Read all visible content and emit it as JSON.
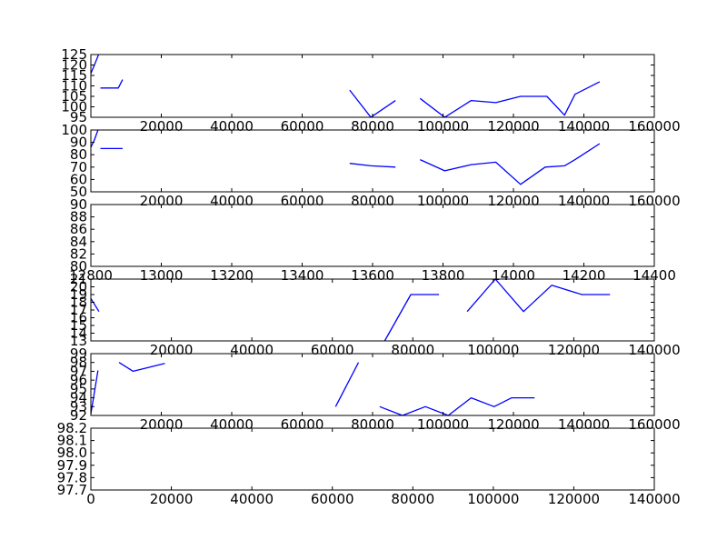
{
  "chart_data": [
    {
      "type": "line",
      "xlim": [
        0,
        160000
      ],
      "ylim": [
        95,
        125
      ],
      "xticks": [
        0,
        20000,
        40000,
        60000,
        80000,
        100000,
        120000,
        140000,
        160000
      ],
      "xtick_labels": [
        "",
        "20000",
        "40000",
        "60000",
        "80000",
        "100000",
        "120000",
        "140000",
        "160000"
      ],
      "yticks": [
        95,
        100,
        105,
        110,
        115,
        120,
        125
      ],
      "ytick_labels": [
        "95",
        "100",
        "105",
        "110",
        "115",
        "120",
        "125"
      ],
      "color": "#0000ff",
      "segments": [
        [
          [
            0,
            116
          ],
          [
            1000,
            120
          ],
          [
            2200,
            125
          ]
        ],
        [
          [
            2700,
            109
          ],
          [
            7800,
            109
          ],
          [
            9000,
            113
          ]
        ],
        [
          [
            73500,
            108
          ],
          [
            79500,
            95
          ],
          [
            86500,
            103
          ]
        ],
        [
          [
            93500,
            104
          ],
          [
            100500,
            95
          ],
          [
            108000,
            103
          ],
          [
            115000,
            102
          ],
          [
            122000,
            105
          ],
          [
            129500,
            105
          ],
          [
            134500,
            96
          ],
          [
            137500,
            106
          ],
          [
            144500,
            112
          ]
        ]
      ]
    },
    {
      "type": "line",
      "xlim": [
        0,
        160000
      ],
      "ylim": [
        50,
        100
      ],
      "xticks": [
        0,
        20000,
        40000,
        60000,
        80000,
        100000,
        120000,
        140000,
        160000
      ],
      "xtick_labels": [
        "",
        "20000",
        "40000",
        "60000",
        "80000",
        "100000",
        "120000",
        "140000",
        "160000"
      ],
      "yticks": [
        50,
        60,
        70,
        80,
        90,
        100
      ],
      "ytick_labels": [
        "50",
        "60",
        "70",
        "80",
        "90",
        "100"
      ],
      "color": "#0000ff",
      "segments": [
        [
          [
            0,
            86
          ],
          [
            1000,
            92
          ],
          [
            2000,
            100
          ]
        ],
        [
          [
            2700,
            85
          ],
          [
            9000,
            85
          ]
        ],
        [
          [
            73500,
            73
          ],
          [
            79500,
            71
          ],
          [
            86500,
            70
          ]
        ],
        [
          [
            93500,
            76
          ],
          [
            100500,
            67
          ],
          [
            108000,
            72
          ],
          [
            115000,
            74
          ],
          [
            122000,
            56
          ],
          [
            129000,
            70
          ],
          [
            134500,
            71
          ],
          [
            137500,
            76
          ],
          [
            144500,
            89
          ]
        ]
      ]
    },
    {
      "type": "line",
      "xlim": [
        12800,
        14400
      ],
      "ylim": [
        80,
        90
      ],
      "xticks": [
        12800,
        13000,
        13200,
        13400,
        13600,
        13800,
        14000,
        14200,
        14400
      ],
      "xtick_labels": [
        "12800",
        "13000",
        "13200",
        "13400",
        "13600",
        "13800",
        "14000",
        "14200",
        "14400"
      ],
      "yticks": [
        80,
        82,
        84,
        86,
        88,
        90
      ],
      "ytick_labels": [
        "80",
        "82",
        "84",
        "86",
        "88",
        "90"
      ],
      "color": "#0000ff",
      "segments": []
    },
    {
      "type": "line",
      "xlim": [
        0,
        140000
      ],
      "ylim": [
        13,
        21
      ],
      "xticks": [
        0,
        20000,
        40000,
        60000,
        80000,
        100000,
        120000,
        140000
      ],
      "xtick_labels": [
        "",
        "20000",
        "40000",
        "60000",
        "80000",
        "100000",
        "120000",
        "140000"
      ],
      "yticks": [
        13,
        14,
        15,
        16,
        17,
        18,
        19,
        20,
        21
      ],
      "ytick_labels": [
        "13",
        "14",
        "15",
        "16",
        "17",
        "18",
        "19",
        "20",
        "21"
      ],
      "color": "#0000ff",
      "segments": [
        [
          [
            0,
            18.5
          ],
          [
            2000,
            16.8
          ]
        ],
        [
          [
            73000,
            13
          ],
          [
            79500,
            19
          ],
          [
            86500,
            19
          ]
        ],
        [
          [
            93500,
            16.8
          ],
          [
            100500,
            21
          ],
          [
            107500,
            16.8
          ],
          [
            114500,
            20.2
          ],
          [
            122000,
            19
          ],
          [
            129000,
            19
          ]
        ]
      ]
    },
    {
      "type": "line",
      "xlim": [
        0,
        160000
      ],
      "ylim": [
        92,
        99
      ],
      "xticks": [
        0,
        20000,
        40000,
        60000,
        80000,
        100000,
        120000,
        140000,
        160000
      ],
      "xtick_labels": [
        "",
        "20000",
        "40000",
        "60000",
        "80000",
        "100000",
        "120000",
        "140000",
        "160000"
      ],
      "yticks": [
        92,
        93,
        94,
        95,
        96,
        97,
        98,
        99
      ],
      "ytick_labels": [
        "92",
        "93",
        "94",
        "95",
        "96",
        "97",
        "98",
        "99"
      ],
      "color": "#0000ff",
      "segments": [
        [
          [
            0,
            92.2
          ],
          [
            2000,
            97.1
          ]
        ],
        [
          [
            8000,
            98
          ],
          [
            12000,
            97
          ],
          [
            21000,
            97.9
          ]
        ],
        [
          [
            69500,
            93
          ],
          [
            76000,
            98
          ]
        ],
        [
          [
            82000,
            93
          ],
          [
            88500,
            92
          ],
          [
            95000,
            93
          ],
          [
            101500,
            92
          ],
          [
            108000,
            94
          ],
          [
            114500,
            93
          ],
          [
            119500,
            94
          ],
          [
            126000,
            94
          ]
        ]
      ]
    },
    {
      "type": "line",
      "xlim": [
        0,
        140000
      ],
      "ylim": [
        97.7,
        98.2
      ],
      "xticks": [
        0,
        20000,
        40000,
        60000,
        80000,
        100000,
        120000,
        140000
      ],
      "xtick_labels": [
        "0",
        "20000",
        "40000",
        "60000",
        "80000",
        "100000",
        "120000",
        "140000"
      ],
      "yticks": [
        97.7,
        97.8,
        97.9,
        98.0,
        98.1,
        98.2
      ],
      "ytick_labels": [
        "97.7",
        "97.8",
        "97.9",
        "98.0",
        "98.1",
        "98.2"
      ],
      "color": "#0000ff",
      "segments": []
    }
  ]
}
